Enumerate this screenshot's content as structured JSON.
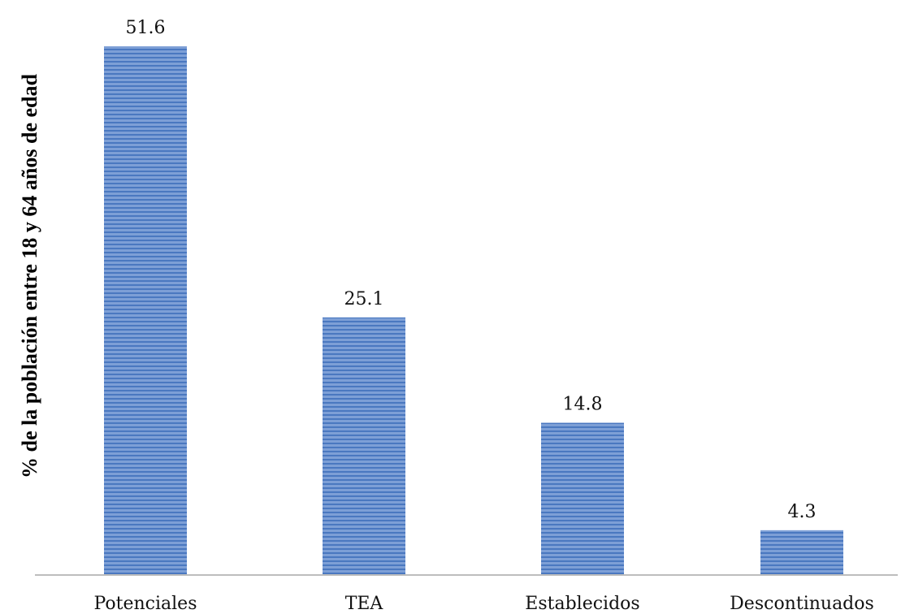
{
  "chart_data": {
    "type": "bar",
    "categories": [
      "Potenciales",
      "TEA",
      "Establecidos",
      "Descontinuados"
    ],
    "values": [
      51.6,
      25.1,
      14.8,
      4.3
    ],
    "value_labels": [
      "51.6",
      "25.1",
      "14.8",
      "4.3"
    ],
    "title": "",
    "xlabel": "",
    "ylabel": "% de la población entre 18 y 64 años de edad",
    "ylim": [
      0,
      51.6
    ],
    "grid": false,
    "legend": "none",
    "bar_color": "#7d9fd6",
    "bar_stripe_color": "#4a78c0",
    "axis_color": "#bdbdbd"
  }
}
